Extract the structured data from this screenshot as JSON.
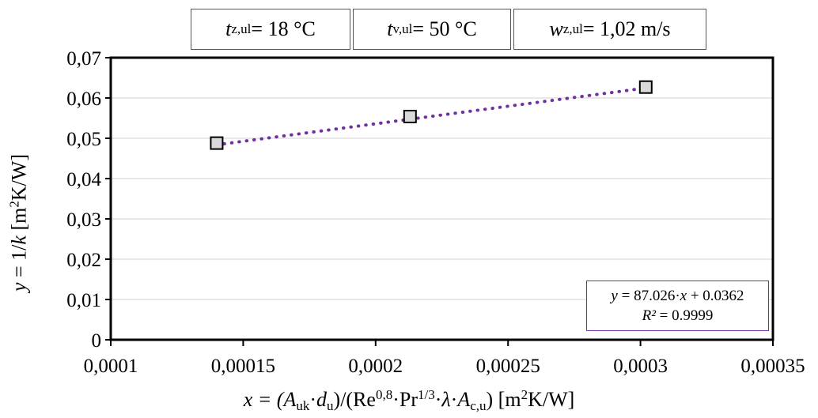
{
  "params": [
    {
      "var": "t",
      "sub": "z,ul",
      "value": " = 18 °C"
    },
    {
      "var": "t",
      "sub": "v,ul",
      "value": " = 50 °C"
    },
    {
      "var": "w",
      "sub": "z,ul",
      "value": " = 1,02 m/s"
    }
  ],
  "equation": {
    "line1_var": "y",
    "line1_rest": " = 87.026·",
    "line1_x": "x",
    "line1_tail": " + 0.0362",
    "line2_var": "R²",
    "line2_rest": " = 0.9999"
  },
  "xlabel_parts": {
    "a": "x = (",
    "A": "A",
    "uk": "uk",
    "dot1": "·",
    "d": "d",
    "u": "u",
    "b": ")/(Re",
    "exp1": "0,8",
    "c": "·Pr",
    "exp2": "1/3",
    "dot2": "·",
    "lambda": "λ",
    "dot3": "·",
    "A2": "A",
    "cu": "c,u",
    "close": ")  [m",
    "exp3": "2",
    "unit": "K/W]"
  },
  "ylabel_parts": {
    "y": "y",
    "a": " = 1/",
    "k": "k",
    "b": "  [m",
    "exp": "2",
    "c": "K/W]"
  },
  "colors": {
    "trendline": "#7030a0",
    "marker_fill": "#d9d9d9",
    "marker_stroke": "#000000",
    "grid": "#d9d9d9"
  },
  "chart_data": {
    "type": "scatter",
    "x_ticks": [
      "0,0001",
      "0,00015",
      "0,0002",
      "0,00025",
      "0,0003",
      "0,00035"
    ],
    "y_ticks": [
      "0",
      "0,01",
      "0,02",
      "0,03",
      "0,04",
      "0,05",
      "0,06",
      "0,07"
    ],
    "xlim": [
      0.0001,
      0.00035
    ],
    "ylim": [
      0,
      0.07
    ],
    "grid": "horizontal",
    "series": [
      {
        "points": [
          {
            "x": 0.00014,
            "y": 0.0488
          },
          {
            "x": 0.000213,
            "y": 0.0554
          },
          {
            "x": 0.000302,
            "y": 0.0627
          }
        ]
      }
    ],
    "trendline": {
      "slope": 87.026,
      "intercept": 0.0362,
      "r2": 0.9999,
      "style": "dotted",
      "x_range": [
        0.00014,
        0.000302
      ]
    }
  }
}
